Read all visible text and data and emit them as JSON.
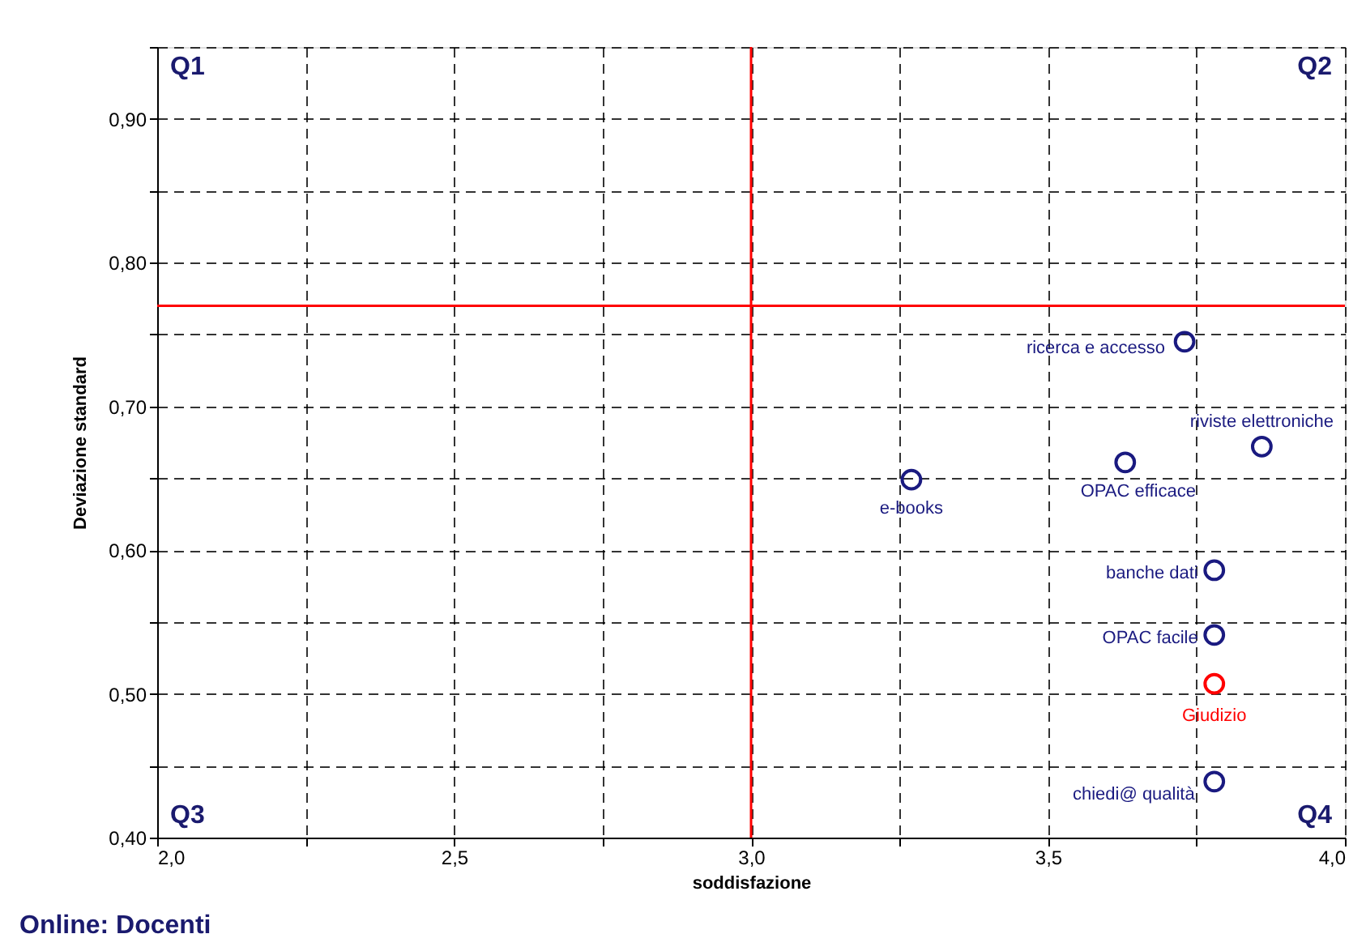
{
  "chart_data": {
    "type": "scatter",
    "xlabel": "soddisfazione",
    "ylabel": "Deviazione standard",
    "xlim": [
      2.0,
      4.0
    ],
    "xticks": [
      {
        "value": 2.0,
        "label": "2,0"
      },
      {
        "value": 2.25,
        "label": null
      },
      {
        "value": 2.5,
        "label": "2,5"
      },
      {
        "value": 2.75,
        "label": null
      },
      {
        "value": 3.0,
        "label": "3,0"
      },
      {
        "value": 3.25,
        "label": null
      },
      {
        "value": 3.5,
        "label": "3,5"
      },
      {
        "value": 3.75,
        "label": null
      },
      {
        "value": 4.0,
        "label": "4,0"
      }
    ],
    "ylim": [
      0.4,
      0.95
    ],
    "yticks": [
      {
        "value": 0.4,
        "label": "0,40"
      },
      {
        "value": 0.45,
        "label": null
      },
      {
        "value": 0.5,
        "label": "0,50"
      },
      {
        "value": 0.55,
        "label": null
      },
      {
        "value": 0.6,
        "label": "0,60"
      },
      {
        "value": 0.65,
        "label": null
      },
      {
        "value": 0.7,
        "label": "0,70"
      },
      {
        "value": 0.75,
        "label": null
      },
      {
        "value": 0.8,
        "label": "0,80"
      },
      {
        "value": 0.85,
        "label": null
      },
      {
        "value": 0.9,
        "label": "0,90"
      },
      {
        "value": 0.95,
        "label": null
      }
    ],
    "grid": true,
    "marker": "circle",
    "series": [
      {
        "name": "ricerca e accesso",
        "color": "#1a1a80",
        "x": [
          3.73
        ],
        "values": [
          0.745
        ]
      },
      {
        "name": "riviste elettroniche",
        "color": "#1a1a80",
        "x": [
          3.86
        ],
        "values": [
          0.672
        ]
      },
      {
        "name": "OPAC efficace",
        "color": "#1a1a80",
        "x": [
          3.63
        ],
        "values": [
          0.661
        ]
      },
      {
        "name": "e-books",
        "color": "#1a1a80",
        "x": [
          3.27
        ],
        "values": [
          0.649
        ]
      },
      {
        "name": "banche dati",
        "color": "#1a1a80",
        "x": [
          3.78
        ],
        "values": [
          0.586
        ]
      },
      {
        "name": "OPAC facile",
        "color": "#1a1a80",
        "x": [
          3.78
        ],
        "values": [
          0.541
        ]
      },
      {
        "name": "Giudizio",
        "color": "#ff0000",
        "x": [
          3.78
        ],
        "values": [
          0.507
        ]
      },
      {
        "name": "chiedi@ qualità",
        "color": "#1a1a80",
        "x": [
          3.78
        ],
        "values": [
          0.439
        ]
      }
    ],
    "ref_lines": [
      {
        "axis": "x",
        "value": 3.0,
        "color": "#ff0000"
      },
      {
        "axis": "y",
        "value": 0.77,
        "color": "#ff0000"
      }
    ],
    "annotations": [
      "Q1",
      "Q2",
      "Q3",
      "Q4",
      "Online: Docenti"
    ]
  }
}
